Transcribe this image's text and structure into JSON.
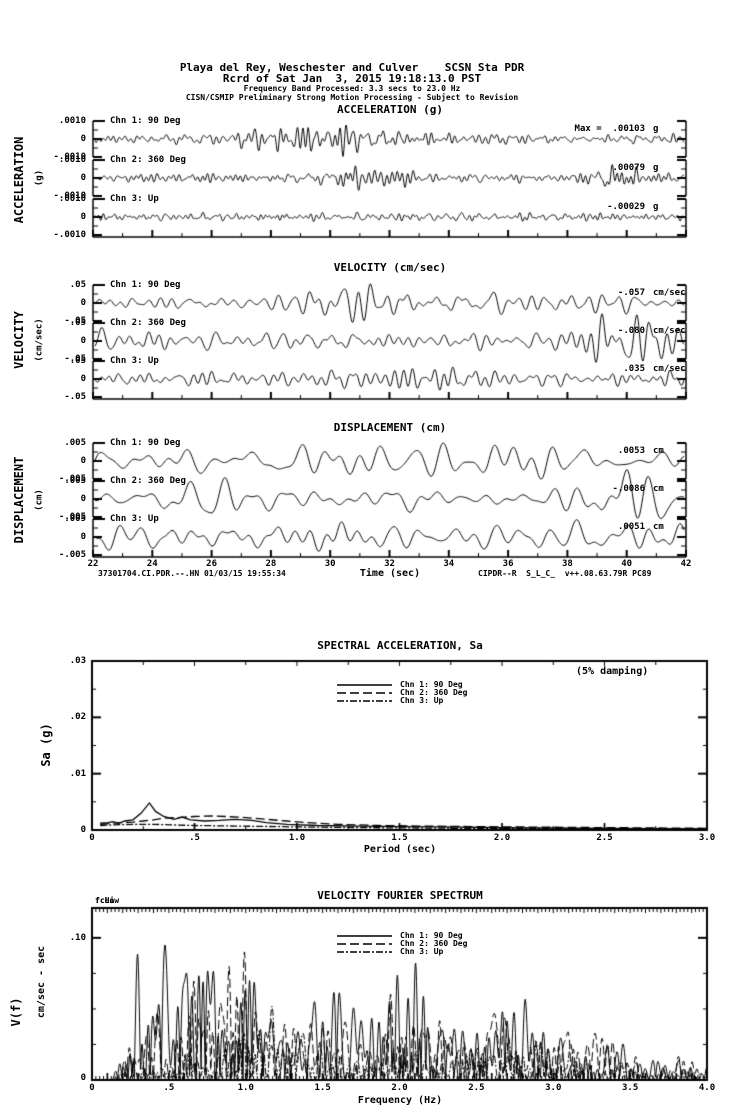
{
  "header": {
    "line1": "Playa del Rey, Weschester and Culver    SCSN Sta PDR",
    "line2": "Rcrd of Sat Jan  3, 2015 19:18:13.0 PST",
    "line3": "Frequency Band Processed: 3.3 secs to 23.0 Hz",
    "line4": "CISN/CSMIP Preliminary Strong Motion Processing - Subject to Revision"
  },
  "legend": {
    "items": [
      {
        "label": "Chn 1: 90 Deg",
        "dash": "solid"
      },
      {
        "label": "Chn 2: 360 Deg",
        "dash": "long-dash"
      },
      {
        "label": "Chn 3: Up",
        "dash": "dash-dot"
      }
    ]
  },
  "time_axis": {
    "label": "Time (sec)",
    "ticks": [
      "22",
      "24",
      "26",
      "28",
      "30",
      "32",
      "34",
      "36",
      "38",
      "40",
      "42"
    ],
    "footer_left": "37301704.CI.PDR.--.HN 01/03/15 19:55:34",
    "footer_right": "CIPDR--R  S_L_C_  v++.08.63.79R PC89"
  },
  "chart_data": [
    {
      "type": "line",
      "id": "acceleration",
      "title": "ACCELERATION (g)",
      "side_label": "ACCELERATION",
      "side_unit": "(g)",
      "full_scale": 0.001,
      "ylim": [
        -0.001,
        0.001
      ],
      "yticks": [
        ".0010",
        "0",
        "-.0010"
      ],
      "xlim_sec": [
        22,
        42
      ],
      "channels": [
        {
          "label": "Chn 1: 90 Deg",
          "peak_text": "Max =  .00103",
          "unit": "g",
          "peak": 0.00103,
          "synth": {
            "seed": 101,
            "fmin": 1.2,
            "fmax": 6.5,
            "base": 0.45,
            "bumps": [
              {
                "c": 29.5,
                "w": 2.2,
                "a": 1.2
              }
            ]
          }
        },
        {
          "label": "Chn 2: 360 Deg",
          "peak_text": ".00079",
          "unit": "g",
          "peak": 0.00079,
          "synth": {
            "seed": 102,
            "fmin": 1.2,
            "fmax": 6.5,
            "base": 0.55,
            "bumps": [
              {
                "c": 31.0,
                "w": 1.5,
                "a": 0.7
              },
              {
                "c": 39.5,
                "w": 1.2,
                "a": 0.9
              }
            ]
          }
        },
        {
          "label": "Chn 3: Up",
          "peak_text": "-.00029",
          "unit": "g",
          "peak": 0.00029,
          "synth": {
            "seed": 103,
            "fmin": 1.6,
            "fmax": 7.5,
            "base": 0.85,
            "bumps": []
          }
        }
      ]
    },
    {
      "type": "line",
      "id": "velocity",
      "title": "VELOCITY (cm/sec)",
      "side_label": "VELOCITY",
      "side_unit": "(cm/sec)",
      "full_scale": 0.05,
      "ylim": [
        -0.05,
        0.05
      ],
      "yticks": [
        ".05",
        "0",
        "-.05"
      ],
      "xlim_sec": [
        22,
        42
      ],
      "channels": [
        {
          "label": "Chn 1: 90 Deg",
          "peak_text": "-.057",
          "unit": "cm/sec",
          "peak": 0.057,
          "synth": {
            "seed": 201,
            "fmin": 0.7,
            "fmax": 3.2,
            "base": 0.5,
            "bumps": [
              {
                "c": 31.0,
                "w": 2.5,
                "a": 0.8
              },
              {
                "c": 36.5,
                "w": 3.0,
                "a": 0.5
              }
            ]
          }
        },
        {
          "label": "Chn 2: 360 Deg",
          "peak_text": "-.080",
          "unit": "cm/sec",
          "peak": 0.08,
          "synth": {
            "seed": 202,
            "fmin": 0.7,
            "fmax": 3.2,
            "base": 0.5,
            "bumps": [
              {
                "c": 39.7,
                "w": 1.0,
                "a": 1.1
              },
              {
                "c": 41.0,
                "w": 0.8,
                "a": 0.6
              }
            ]
          }
        },
        {
          "label": "Chn 3: Up",
          "peak_text": ".035",
          "unit": "cm/sec",
          "peak": 0.035,
          "synth": {
            "seed": 203,
            "fmin": 0.9,
            "fmax": 3.8,
            "base": 0.75,
            "bumps": [
              {
                "c": 32.0,
                "w": 2.0,
                "a": 0.3
              }
            ]
          }
        }
      ]
    },
    {
      "type": "line",
      "id": "displacement",
      "title": "DISPLACEMENT (cm)",
      "side_label": "DISPLACEMENT",
      "side_unit": "(cm)",
      "full_scale": 0.005,
      "ylim": [
        -0.005,
        0.005
      ],
      "yticks": [
        ".005",
        "0",
        "-.005"
      ],
      "xlim_sec": [
        22,
        42
      ],
      "channels": [
        {
          "label": "Chn 1: 90 Deg",
          "peak_text": ".0053",
          "unit": "cm",
          "peak": 0.0053,
          "synth": {
            "seed": 301,
            "fmin": 0.35,
            "fmax": 1.7,
            "base": 0.6,
            "bumps": [
              {
                "c": 33.0,
                "w": 4.0,
                "a": 0.5
              }
            ]
          }
        },
        {
          "label": "Chn 2: 360 Deg",
          "peak_text": "-.0086",
          "unit": "cm",
          "peak": 0.0086,
          "synth": {
            "seed": 302,
            "fmin": 0.35,
            "fmax": 1.7,
            "base": 0.55,
            "bumps": [
              {
                "c": 40.0,
                "w": 1.2,
                "a": 1.0
              },
              {
                "c": 26.5,
                "w": 2.0,
                "a": 0.4
              }
            ]
          }
        },
        {
          "label": "Chn 3: Up",
          "peak_text": ".0051",
          "unit": "cm",
          "peak": 0.0051,
          "synth": {
            "seed": 303,
            "fmin": 0.4,
            "fmax": 2.0,
            "base": 0.6,
            "bumps": [
              {
                "c": 31.0,
                "w": 1.5,
                "a": 0.5
              },
              {
                "c": 40.5,
                "w": 1.0,
                "a": 0.4
              }
            ]
          }
        }
      ]
    },
    {
      "type": "line",
      "id": "spectral-acceleration",
      "title": "SPECTRAL ACCELERATION, Sa",
      "damping_note": "(5% damping)",
      "ylabel": "Sa (g)",
      "xlabel": "Period (sec)",
      "ylim": [
        0,
        0.03
      ],
      "xlim": [
        0,
        3
      ],
      "yticks": [
        ".03",
        ".02",
        ".01",
        "0"
      ],
      "xticks": [
        "0",
        ".5",
        "1.0",
        "1.5",
        "2.0",
        "2.5",
        "3.0"
      ],
      "series": [
        {
          "name": "Chn 1: 90 Deg",
          "dash": "solid",
          "points": [
            [
              0.04,
              0.0012
            ],
            [
              0.08,
              0.0013
            ],
            [
              0.1,
              0.0015
            ],
            [
              0.13,
              0.0012
            ],
            [
              0.16,
              0.0016
            ],
            [
              0.2,
              0.0018
            ],
            [
              0.24,
              0.003
            ],
            [
              0.28,
              0.0048
            ],
            [
              0.31,
              0.0033
            ],
            [
              0.35,
              0.0024
            ],
            [
              0.4,
              0.0019
            ],
            [
              0.44,
              0.0023
            ],
            [
              0.48,
              0.0018
            ],
            [
              0.55,
              0.0016
            ],
            [
              0.62,
              0.0017
            ],
            [
              0.7,
              0.0019
            ],
            [
              0.78,
              0.0017
            ],
            [
              0.85,
              0.0013
            ],
            [
              0.95,
              0.001
            ],
            [
              1.1,
              0.0008
            ],
            [
              1.3,
              0.0007
            ],
            [
              1.5,
              0.0006
            ],
            [
              1.8,
              0.0005
            ],
            [
              2.0,
              0.0004
            ],
            [
              2.5,
              0.0003
            ],
            [
              3.0,
              0.0002
            ]
          ]
        },
        {
          "name": "Chn 2: 360 Deg",
          "dash": "long-dash",
          "points": [
            [
              0.04,
              0.001
            ],
            [
              0.1,
              0.0012
            ],
            [
              0.15,
              0.0013
            ],
            [
              0.2,
              0.0014
            ],
            [
              0.25,
              0.0016
            ],
            [
              0.3,
              0.0018
            ],
            [
              0.35,
              0.0021
            ],
            [
              0.42,
              0.0022
            ],
            [
              0.5,
              0.0024
            ],
            [
              0.58,
              0.0025
            ],
            [
              0.65,
              0.0024
            ],
            [
              0.75,
              0.0022
            ],
            [
              0.85,
              0.0019
            ],
            [
              0.95,
              0.0016
            ],
            [
              1.05,
              0.0013
            ],
            [
              1.2,
              0.001
            ],
            [
              1.4,
              0.0008
            ],
            [
              1.6,
              0.0007
            ],
            [
              1.9,
              0.0006
            ],
            [
              2.2,
              0.0005
            ],
            [
              2.6,
              0.0004
            ],
            [
              3.0,
              0.0003
            ]
          ]
        },
        {
          "name": "Chn 3: Up",
          "dash": "dash-dot",
          "points": [
            [
              0.04,
              0.0008
            ],
            [
              0.1,
              0.0009
            ],
            [
              0.2,
              0.001
            ],
            [
              0.3,
              0.001
            ],
            [
              0.4,
              0.0009
            ],
            [
              0.5,
              0.0008
            ],
            [
              0.7,
              0.0007
            ],
            [
              0.9,
              0.0006
            ],
            [
              1.1,
              0.0005
            ],
            [
              1.4,
              0.0004
            ],
            [
              1.8,
              0.0003
            ],
            [
              2.2,
              0.0003
            ],
            [
              2.6,
              0.0002
            ],
            [
              3.0,
              0.0002
            ]
          ]
        }
      ]
    },
    {
      "type": "line",
      "id": "velocity-fourier-spectrum",
      "title": "VELOCITY FOURIER SPECTRUM",
      "corner_markers": [
        "fcLow",
        "fcHi"
      ],
      "ylabel_main": "V(f)",
      "ylabel_unit": "cm/sec - sec",
      "xlabel": "Frequency (Hz)",
      "ylim": [
        0,
        0.121
      ],
      "xlim": [
        0,
        4
      ],
      "ytick_top": ".10",
      "ytick_zero": "0",
      "xticks": [
        "0",
        ".5",
        "1.0",
        "1.5",
        "2.0",
        "2.5",
        "3.0",
        "3.5",
        "4.0"
      ],
      "series": [
        {
          "name": "Chn 1: 90 Deg",
          "dash": "solid",
          "synth": {
            "seed": 401,
            "peak": 0.095,
            "center": 0.62
          }
        },
        {
          "name": "Chn 2: 360 Deg",
          "dash": "long-dash",
          "synth": {
            "seed": 402,
            "peak": 0.09,
            "center": 0.8
          }
        },
        {
          "name": "Chn 3: Up",
          "dash": "dash-dot",
          "synth": {
            "seed": 403,
            "peak": 0.052,
            "center": 1.05
          }
        }
      ]
    }
  ],
  "colors": {
    "ink": "#000000",
    "background": "#ffffff"
  }
}
